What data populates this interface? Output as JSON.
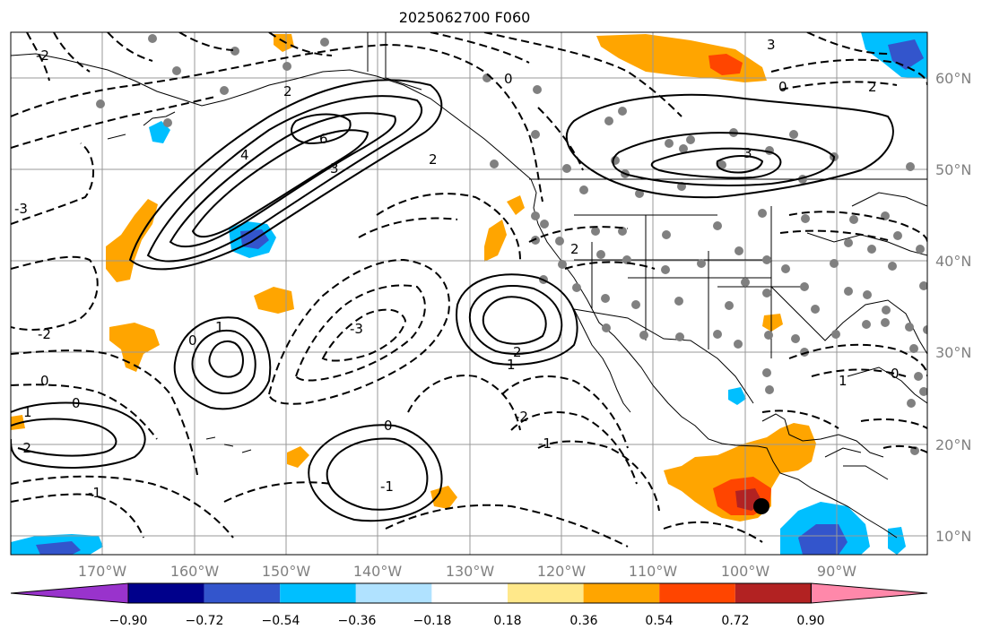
{
  "title": "2025062700 F060",
  "map": {
    "lon_labels": [
      "170°W",
      "160°W",
      "150°W",
      "140°W",
      "130°W",
      "120°W",
      "110°W",
      "100°W",
      "90°W"
    ],
    "lat_labels": [
      "60°N",
      "50°N",
      "40°N",
      "30°N",
      "20°N",
      "10°N"
    ],
    "contour_labels": [
      "-2",
      "-2",
      "-2",
      "-2",
      "-1",
      "-1",
      "-1",
      "0",
      "0",
      "0",
      "0",
      "0",
      "0",
      "0",
      "1",
      "1",
      "1",
      "1",
      "2",
      "2",
      "2",
      "2",
      "2",
      "3",
      "3",
      "3",
      "4",
      "6",
      "-3",
      "-3"
    ]
  },
  "colorbar": {
    "ticks": [
      "−0.90",
      "−0.72",
      "−0.54",
      "−0.36",
      "−0.18",
      "0.18",
      "0.36",
      "0.54",
      "0.72",
      "0.90"
    ],
    "colors": [
      "#9933cc",
      "#00008b",
      "#3355cc",
      "#00bfff",
      "#b0e2ff",
      "#ffffff",
      "#ffe88a",
      "#ffa500",
      "#ff4500",
      "#b22222",
      "#ff88aa"
    ]
  },
  "colors": {
    "orange": "#ffa500",
    "red_orange": "#ff4500",
    "dark_red": "#b22222",
    "light_blue": "#00bfff",
    "mid_blue": "#3355cc",
    "station_gray": "#808080"
  }
}
